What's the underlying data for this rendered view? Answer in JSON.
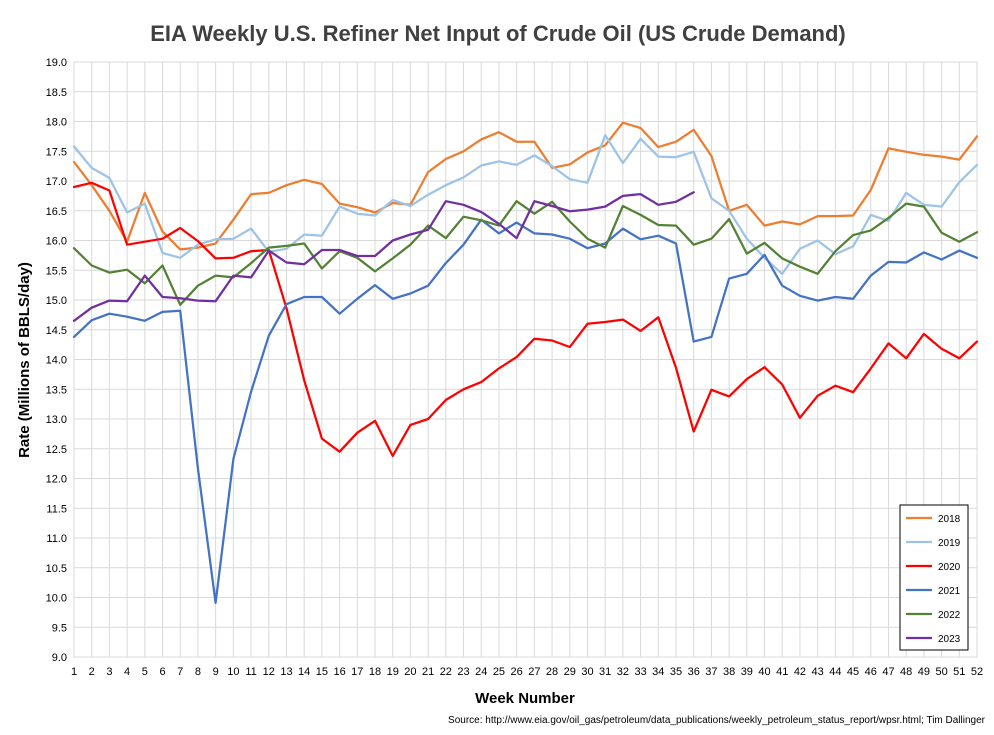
{
  "chart_data": {
    "type": "line",
    "title": "EIA Weekly U.S. Refiner Net Input of Crude Oil (US Crude Demand)",
    "xlabel": "Week Number",
    "ylabel": "Rate (Millions of BBLS/day)",
    "source": "Source: http://www.eia.gov/oil_gas/petroleum/data_publications/weekly_petroleum_status_report/wpsr.html; Tim Dallinger",
    "xlim": [
      1,
      52
    ],
    "ylim": [
      9.0,
      19.0
    ],
    "ytick_step": 0.5,
    "grid": true,
    "legend_position": "bottom-right",
    "x": [
      1,
      2,
      3,
      4,
      5,
      6,
      7,
      8,
      9,
      10,
      11,
      12,
      13,
      14,
      15,
      16,
      17,
      18,
      19,
      20,
      21,
      22,
      23,
      24,
      25,
      26,
      27,
      28,
      29,
      30,
      31,
      32,
      33,
      34,
      35,
      36,
      37,
      38,
      39,
      40,
      41,
      42,
      43,
      44,
      45,
      46,
      47,
      48,
      49,
      50,
      51,
      52
    ],
    "series": [
      {
        "name": "2018",
        "color": "#ED7D31",
        "values": [
          17.32,
          16.93,
          16.5,
          15.98,
          16.8,
          16.15,
          15.85,
          15.88,
          15.95,
          16.35,
          16.78,
          16.8,
          16.93,
          17.02,
          16.95,
          16.62,
          16.56,
          16.47,
          16.63,
          16.6,
          17.15,
          17.37,
          17.5,
          17.7,
          17.82,
          17.66,
          17.66,
          17.22,
          17.28,
          17.48,
          17.6,
          17.98,
          17.89,
          17.57,
          17.66,
          17.86,
          17.42,
          16.5,
          16.6,
          16.25,
          16.32,
          16.27,
          16.41,
          16.41,
          16.42,
          16.85,
          17.55,
          17.49,
          17.44,
          17.41,
          17.36,
          17.75
        ]
      },
      {
        "name": "2019",
        "color": "#9DC3E6",
        "values": [
          17.58,
          17.22,
          17.05,
          16.47,
          16.62,
          15.79,
          15.71,
          15.93,
          16.02,
          16.03,
          16.2,
          15.81,
          15.86,
          16.1,
          16.08,
          16.57,
          16.45,
          16.42,
          16.68,
          16.58,
          16.77,
          16.93,
          17.06,
          17.26,
          17.33,
          17.27,
          17.43,
          17.25,
          17.03,
          16.97,
          17.77,
          17.3,
          17.71,
          17.41,
          17.4,
          17.49,
          16.71,
          16.5,
          16.03,
          15.71,
          15.44,
          15.86,
          16.0,
          15.77,
          15.9,
          16.43,
          16.33,
          16.8,
          16.6,
          16.57,
          16.98,
          17.27
        ]
      },
      {
        "name": "2020",
        "color": "#FF0000",
        "values": [
          16.9,
          16.97,
          16.84,
          15.93,
          15.98,
          16.03,
          16.21,
          15.99,
          15.7,
          15.71,
          15.82,
          15.84,
          14.86,
          13.65,
          12.67,
          12.45,
          12.77,
          12.97,
          12.38,
          12.9,
          13.0,
          13.32,
          13.5,
          13.62,
          13.85,
          14.04,
          14.35,
          14.32,
          14.21,
          14.6,
          14.63,
          14.67,
          14.48,
          14.71,
          13.86,
          12.79,
          13.49,
          13.38,
          13.67,
          13.87,
          13.58,
          13.02,
          13.39,
          13.56,
          13.45,
          13.85,
          14.27,
          14.02,
          14.43,
          14.18,
          14.02,
          14.3
        ]
      },
      {
        "name": "2021",
        "color": "#4472C4",
        "values": [
          14.38,
          14.66,
          14.77,
          14.72,
          14.65,
          14.8,
          14.82,
          12.17,
          9.91,
          12.33,
          13.46,
          14.4,
          14.93,
          15.05,
          15.05,
          14.77,
          15.02,
          15.25,
          15.02,
          15.11,
          15.24,
          15.62,
          15.93,
          16.35,
          16.12,
          16.3,
          16.12,
          16.1,
          16.03,
          15.87,
          15.95,
          16.2,
          16.02,
          16.08,
          15.95,
          14.3,
          14.38,
          15.36,
          15.44,
          15.76,
          15.24,
          15.07,
          14.99,
          15.05,
          15.02,
          15.41,
          15.64,
          15.63,
          15.8,
          15.68,
          15.83,
          15.71
        ]
      },
      {
        "name": "2022",
        "color": "#548235",
        "values": [
          15.87,
          15.58,
          15.46,
          15.51,
          15.28,
          15.58,
          14.92,
          15.24,
          15.41,
          15.38,
          15.62,
          15.88,
          15.91,
          15.95,
          15.53,
          15.82,
          15.71,
          15.48,
          15.7,
          15.93,
          16.25,
          16.04,
          16.4,
          16.34,
          16.25,
          16.66,
          16.45,
          16.65,
          16.32,
          16.03,
          15.88,
          16.58,
          16.43,
          16.26,
          16.25,
          15.93,
          16.03,
          16.36,
          15.78,
          15.96,
          15.7,
          15.56,
          15.44,
          15.82,
          16.09,
          16.17,
          16.38,
          16.62,
          16.57,
          16.13,
          15.98,
          16.14
        ]
      },
      {
        "name": "2023",
        "color": "#7030A0",
        "values": [
          14.65,
          14.87,
          14.99,
          14.98,
          15.41,
          15.05,
          15.03,
          14.99,
          14.98,
          15.41,
          15.38,
          15.83,
          15.63,
          15.6,
          15.84,
          15.84,
          15.74,
          15.74,
          16.0,
          16.1,
          16.18,
          16.66,
          16.6,
          16.48,
          16.28,
          16.04,
          16.66,
          16.58,
          16.49,
          16.52,
          16.57,
          16.75,
          16.78,
          16.6,
          16.65,
          16.81,
          null,
          null,
          null,
          null,
          null,
          null,
          null,
          null,
          null,
          null,
          null,
          null,
          null,
          null,
          null,
          null
        ]
      }
    ]
  }
}
